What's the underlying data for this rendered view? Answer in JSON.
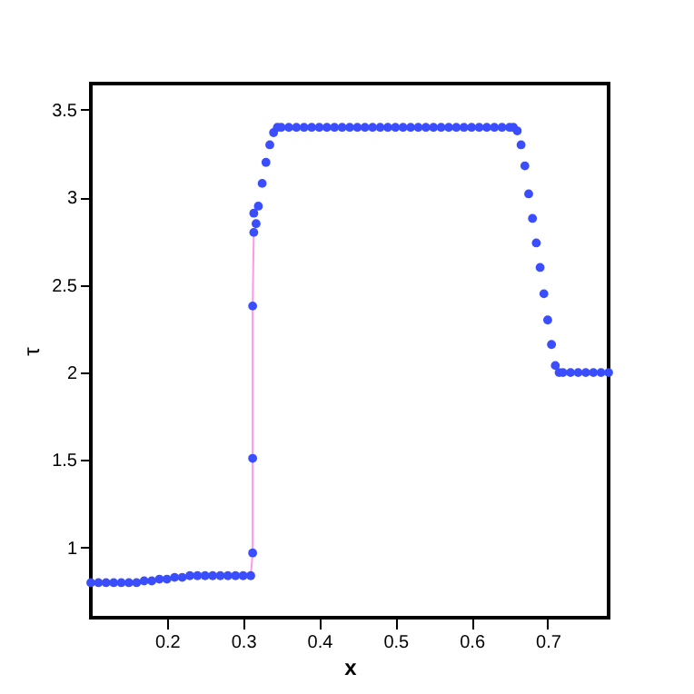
{
  "chart_data": {
    "type": "line",
    "xlabel": "x",
    "ylabel": "τ",
    "xlim": [
      0.1,
      0.78
    ],
    "ylim": [
      0.6,
      3.65
    ],
    "xticks": [
      0.2,
      0.3,
      0.4,
      0.5,
      0.6,
      0.7
    ],
    "yticks": [
      1,
      1.5,
      2,
      2.5,
      3,
      3.5
    ],
    "grid": false,
    "x": [
      0.1,
      0.11,
      0.12,
      0.13,
      0.14,
      0.15,
      0.16,
      0.17,
      0.18,
      0.19,
      0.2,
      0.21,
      0.22,
      0.23,
      0.24,
      0.25,
      0.26,
      0.27,
      0.28,
      0.29,
      0.3,
      0.31,
      0.3125,
      0.3125,
      0.3125,
      0.314,
      0.314,
      0.317,
      0.32,
      0.325,
      0.33,
      0.335,
      0.34,
      0.345,
      0.35,
      0.36,
      0.37,
      0.38,
      0.39,
      0.4,
      0.41,
      0.42,
      0.43,
      0.44,
      0.45,
      0.46,
      0.47,
      0.48,
      0.49,
      0.5,
      0.51,
      0.52,
      0.53,
      0.54,
      0.55,
      0.56,
      0.57,
      0.58,
      0.59,
      0.6,
      0.61,
      0.62,
      0.63,
      0.64,
      0.65,
      0.655,
      0.66,
      0.665,
      0.67,
      0.675,
      0.68,
      0.685,
      0.69,
      0.695,
      0.7,
      0.705,
      0.71,
      0.715,
      0.72,
      0.73,
      0.74,
      0.75,
      0.76,
      0.77,
      0.78
    ],
    "series": [
      {
        "color": "#ff99ee",
        "values": [
          null,
          null,
          null,
          null,
          null,
          null,
          null,
          null,
          null,
          null,
          null,
          null,
          null,
          null,
          null,
          null,
          null,
          null,
          null,
          null,
          null,
          0.84,
          0.97,
          1.51,
          2.38,
          2.8,
          null,
          null,
          null,
          null,
          null,
          null,
          null,
          null,
          null,
          null,
          null,
          null,
          null,
          null,
          null,
          null,
          null,
          null,
          null,
          null,
          null,
          null,
          null,
          null,
          null,
          null,
          null,
          null,
          null,
          null,
          null,
          null,
          null,
          null,
          null,
          null,
          null,
          null,
          null,
          null,
          null,
          null,
          null,
          null,
          null,
          null,
          null,
          null,
          null,
          null,
          null,
          null,
          null,
          null,
          null,
          null,
          null,
          null,
          null
        ]
      },
      {
        "type": "scatter",
        "color": "#3a4dff",
        "values": [
          0.8,
          0.8,
          0.8,
          0.8,
          0.8,
          0.8,
          0.8,
          0.81,
          0.81,
          0.82,
          0.82,
          0.83,
          0.83,
          0.84,
          0.84,
          0.84,
          0.84,
          0.84,
          0.84,
          0.84,
          0.84,
          0.84,
          0.97,
          1.51,
          2.38,
          2.8,
          2.91,
          2.85,
          2.95,
          3.08,
          3.2,
          3.3,
          3.37,
          3.4,
          3.4,
          3.4,
          3.4,
          3.4,
          3.4,
          3.4,
          3.4,
          3.4,
          3.4,
          3.4,
          3.4,
          3.4,
          3.4,
          3.4,
          3.4,
          3.4,
          3.4,
          3.4,
          3.4,
          3.4,
          3.4,
          3.4,
          3.4,
          3.4,
          3.4,
          3.4,
          3.4,
          3.4,
          3.4,
          3.4,
          3.4,
          3.4,
          3.38,
          3.3,
          3.18,
          3.02,
          2.88,
          2.74,
          2.6,
          2.45,
          2.3,
          2.16,
          2.04,
          2.0,
          2.0,
          2.0,
          2.0,
          2.0,
          2.0,
          2.0,
          2.0
        ]
      }
    ]
  }
}
